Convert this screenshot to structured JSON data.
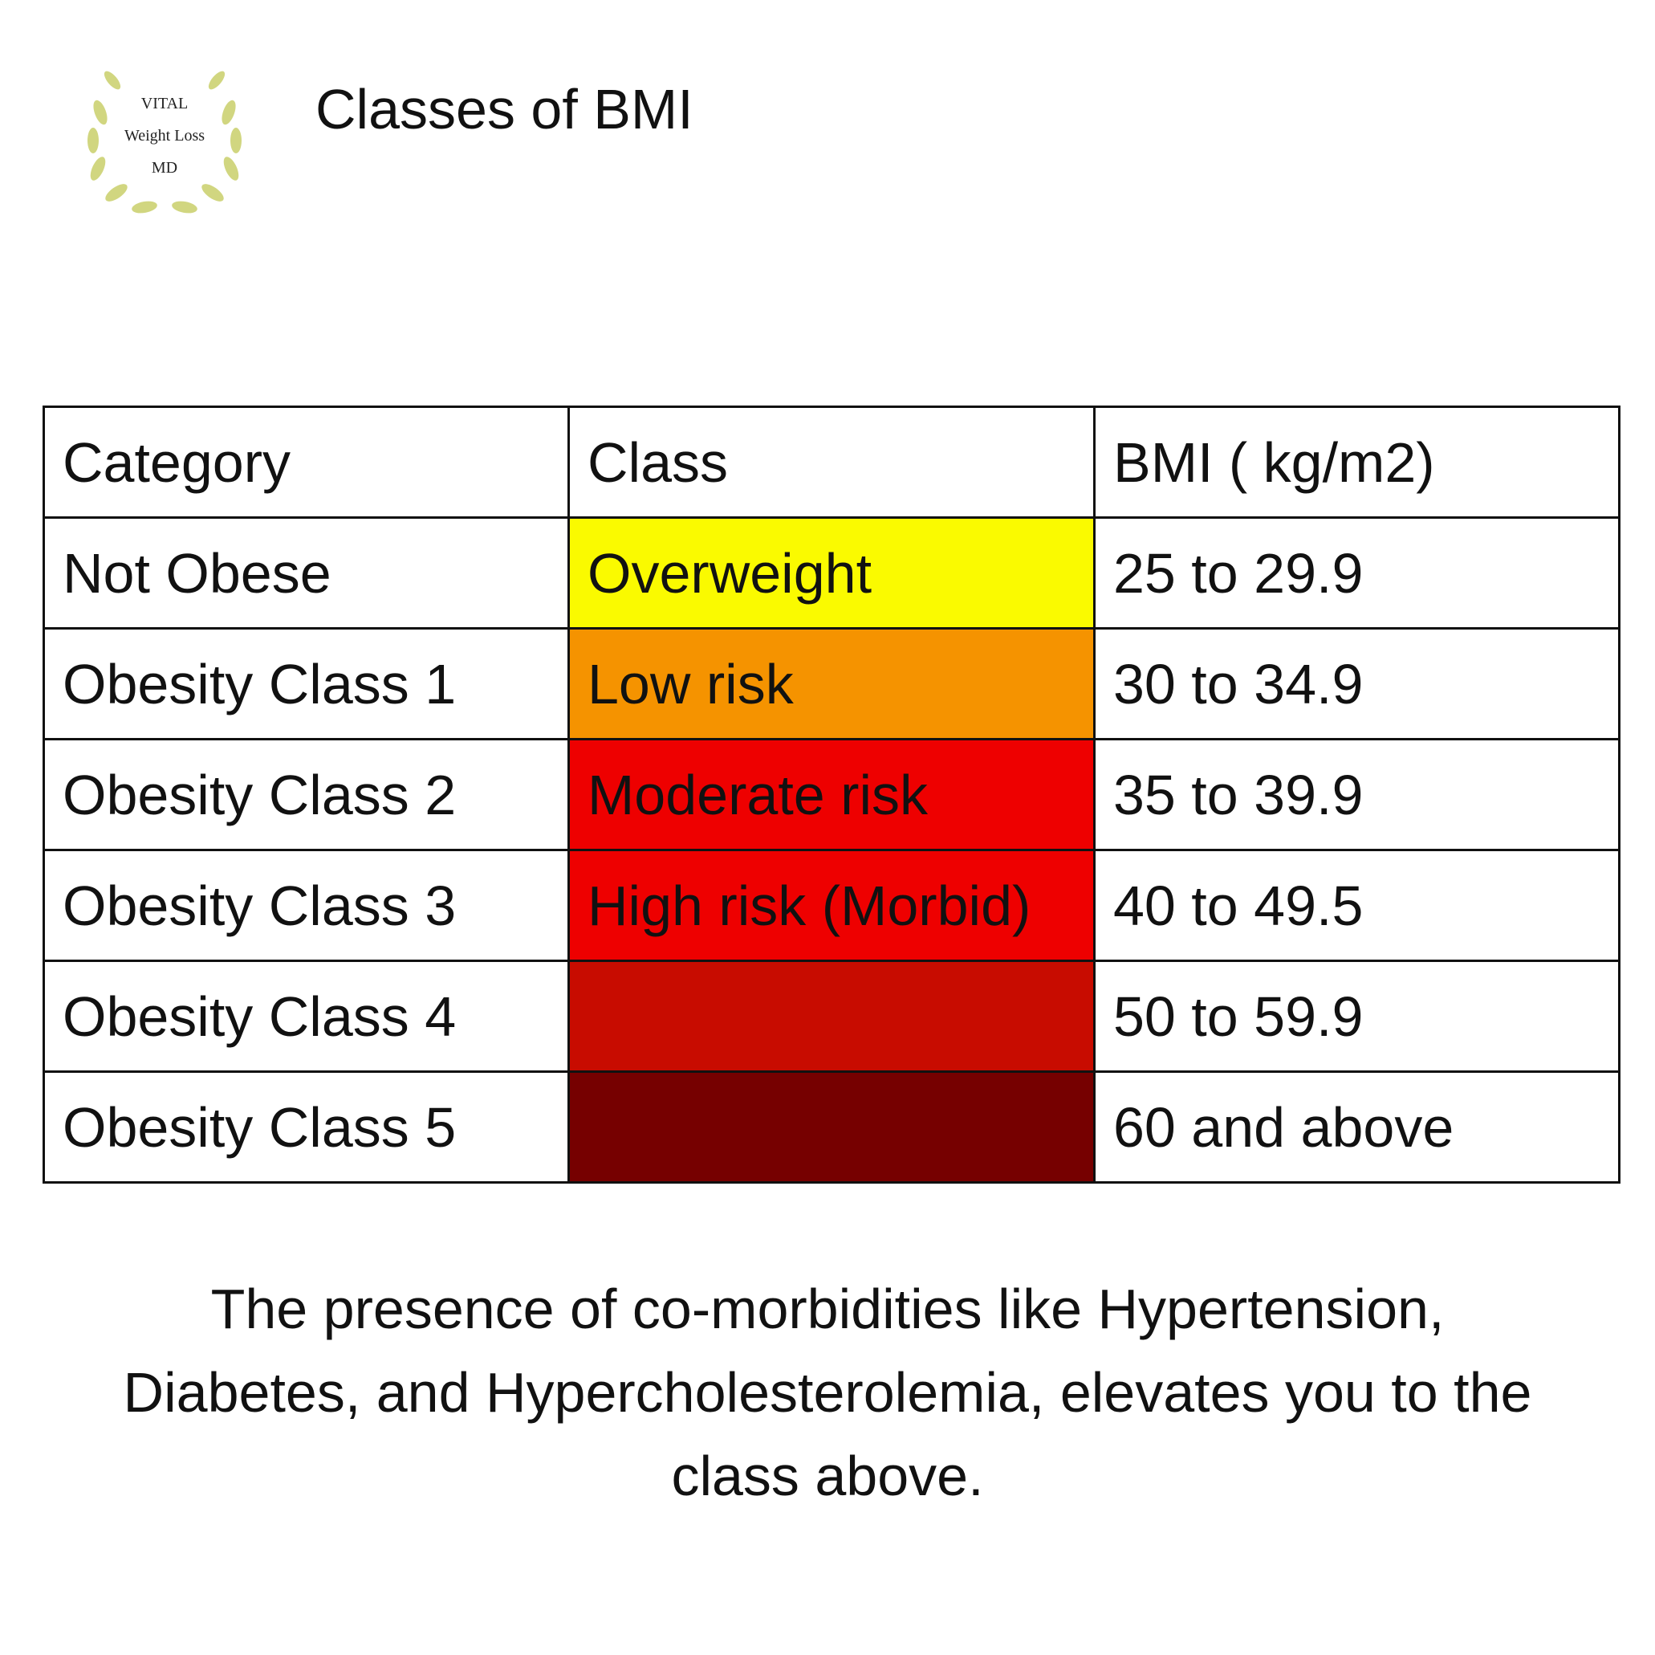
{
  "logo": {
    "lines": [
      "VITAL",
      "Weight Loss",
      "MD"
    ]
  },
  "header": {
    "title": "Classes of BMI"
  },
  "table": {
    "columns": [
      "Category",
      "Class",
      "BMI ( kg/m2)"
    ],
    "rows": [
      {
        "category": "Not Obese",
        "class": "Overweight",
        "bmi": "25 to 29.9",
        "color": "#fafa00"
      },
      {
        "category": "Obesity Class 1",
        "class": "Low risk",
        "bmi": "30 to 34.9",
        "color": "#f59300"
      },
      {
        "category": "Obesity Class 2",
        "class": "Moderate risk",
        "bmi": "35 to 39.9",
        "color": "#ee0000"
      },
      {
        "category": "Obesity Class 3",
        "class": "High risk (Morbid)",
        "bmi": "40 to 49.5",
        "color": "#ee0000"
      },
      {
        "category": "Obesity Class 4",
        "bmi": "50 to 59.9",
        "color": "#c80c00"
      },
      {
        "category": "Obesity Class 5",
        "bmi": "60 and above",
        "color": "#760000"
      }
    ]
  },
  "footnote": {
    "lines": [
      "The presence of co-morbidities like Hypertension,",
      "Diabetes, and Hypercholesterolemia, elevates you to the",
      "class above."
    ]
  }
}
